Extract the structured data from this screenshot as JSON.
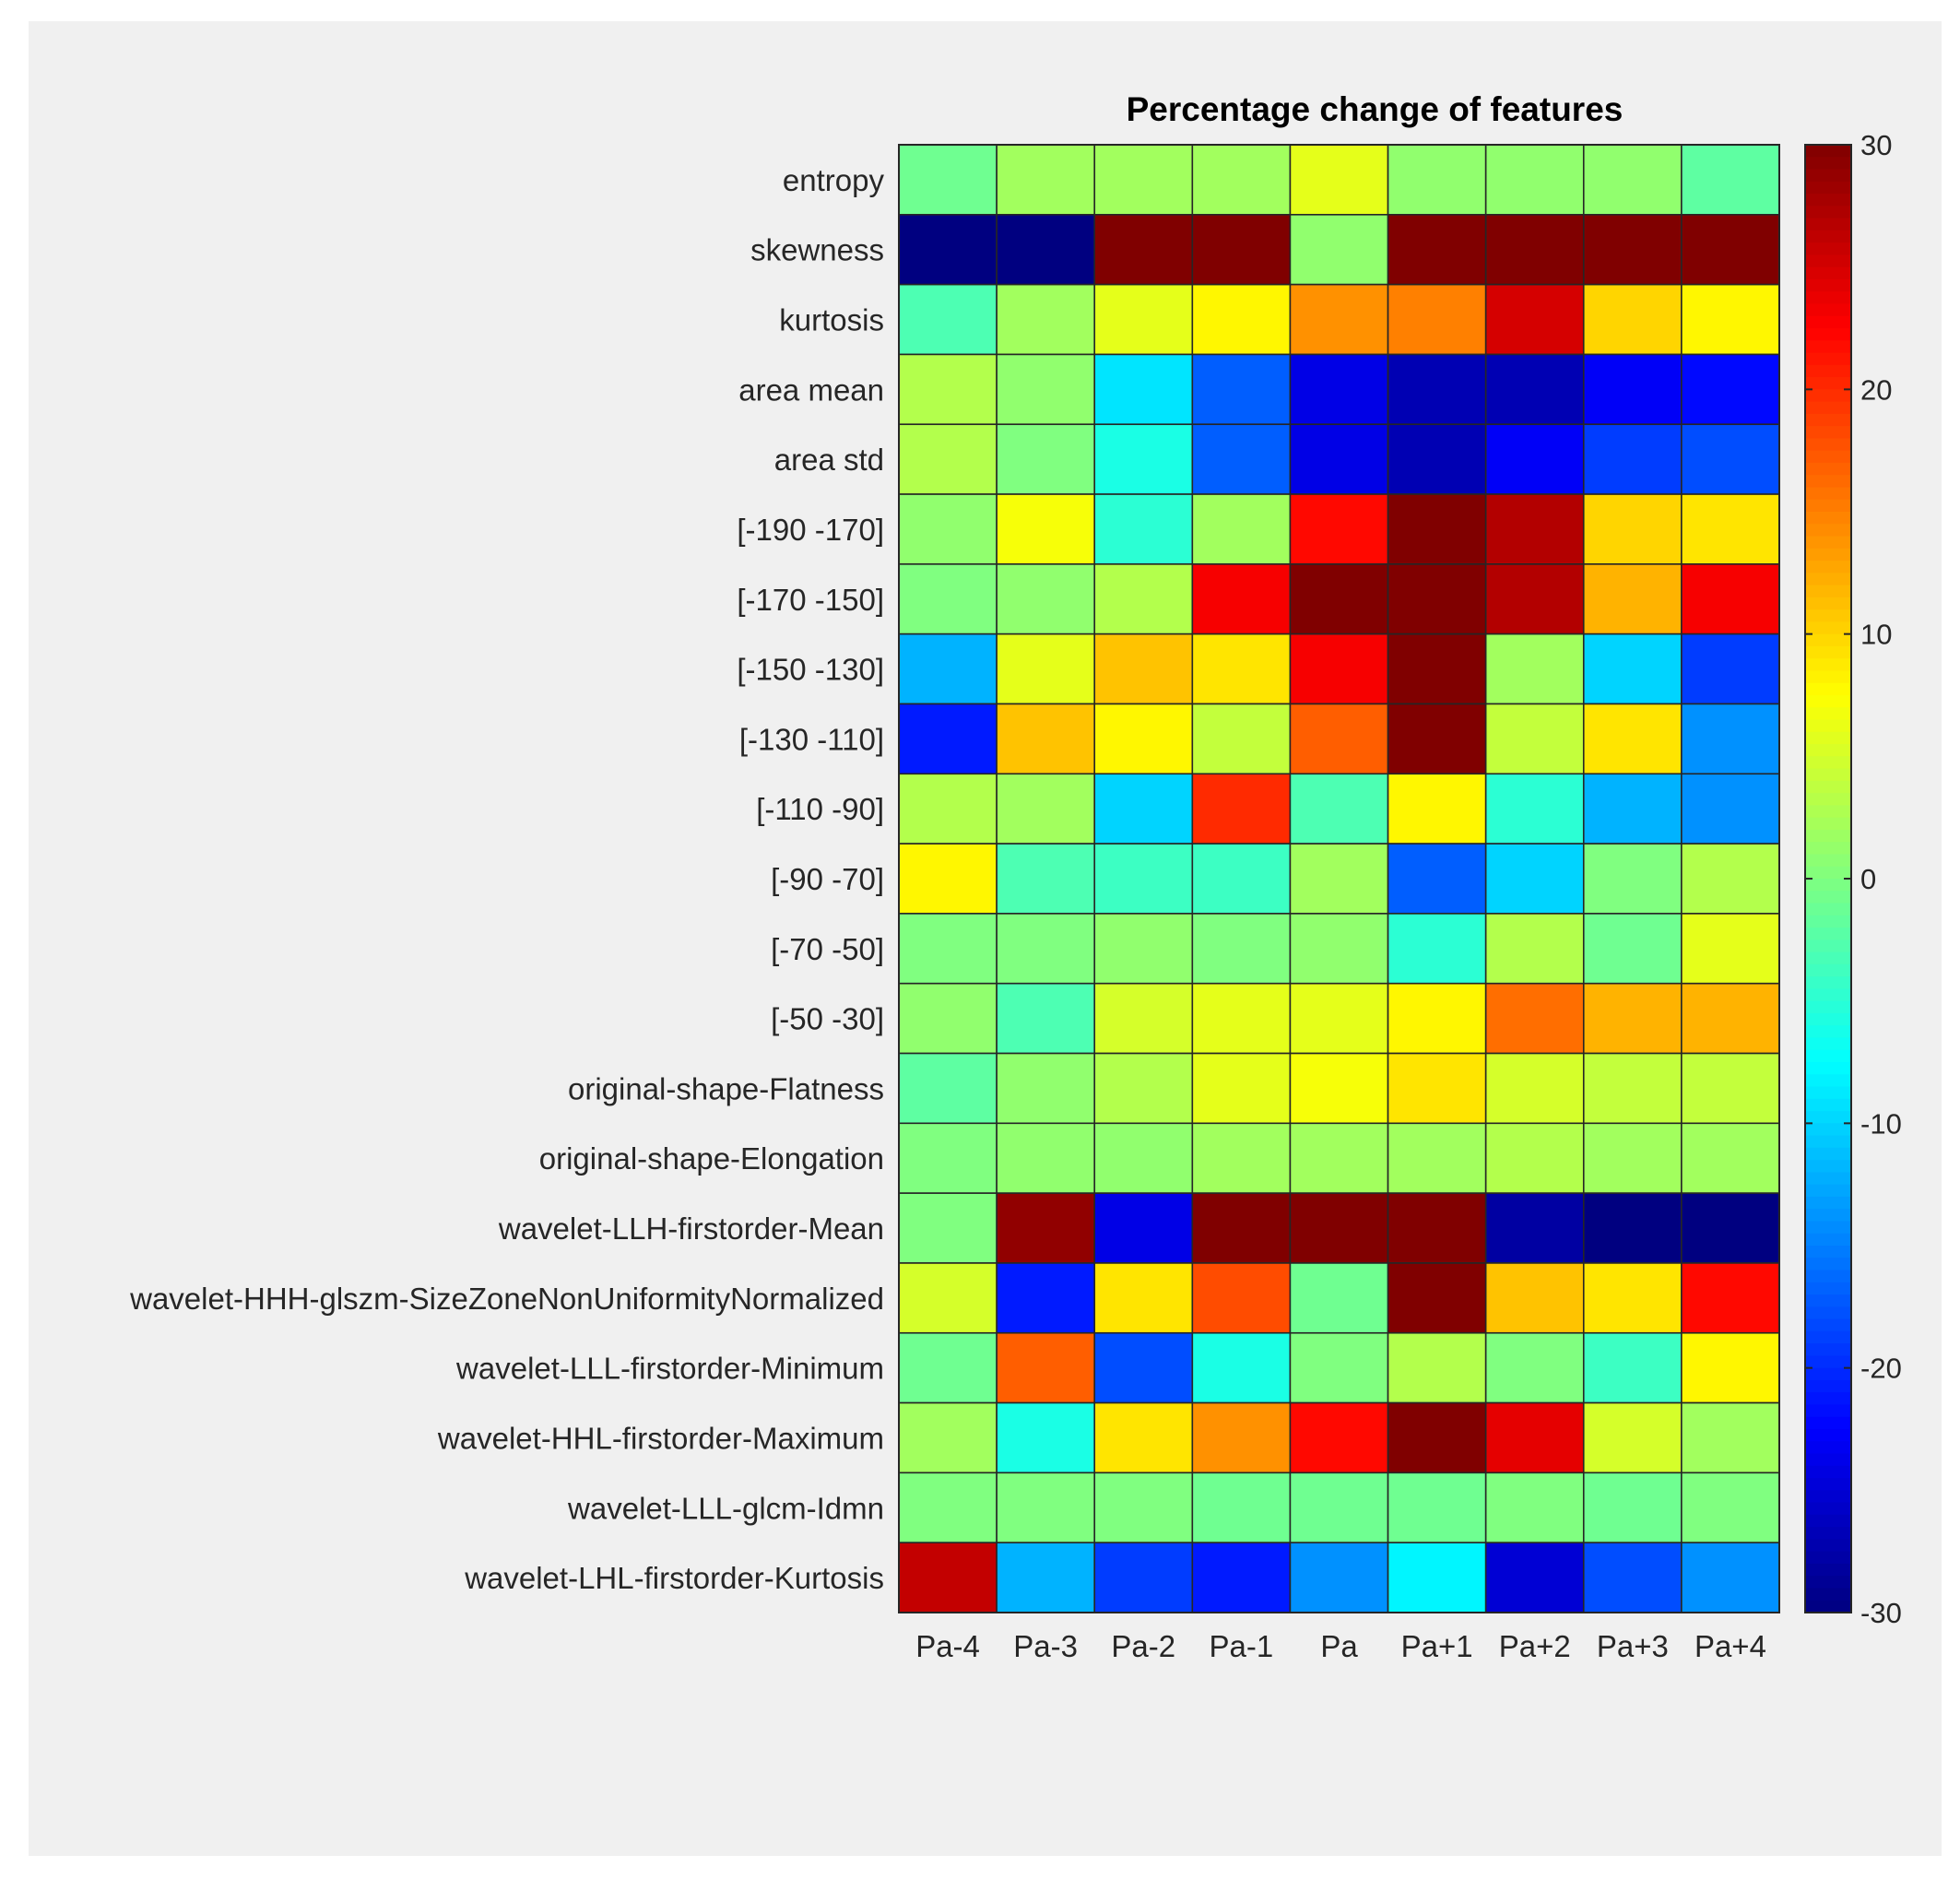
{
  "chart_data": {
    "type": "heatmap",
    "title": "Percentage change of features",
    "xlabel": "",
    "ylabel": "",
    "colormap": "jet",
    "clim": [
      -30,
      30
    ],
    "colorbar": {
      "ticks": [
        30,
        20,
        10,
        0,
        -10,
        -20,
        -30
      ],
      "tick_labels": [
        "30",
        "20",
        "10",
        "0",
        "-10",
        "-20",
        "-30"
      ],
      "placement": "right"
    },
    "columns": [
      "Pa-4",
      "Pa-3",
      "Pa-2",
      "Pa-1",
      "Pa",
      "Pa+1",
      "Pa+2",
      "Pa+3",
      "Pa+4"
    ],
    "rows": [
      "entropy",
      "skewness",
      "kurtosis",
      "area mean",
      "area std",
      "[-190 -170]",
      "[-170 -150]",
      "[-150 -130]",
      "[-130 -110]",
      "[-110 -90]",
      "[-90 -70]",
      "[-70 -50]",
      "[-50 -30]",
      "original-shape-Flatness",
      "original-shape-Elongation",
      "wavelet-LLH-firstorder-Mean",
      "wavelet-HHH-glszm-SizeZoneNonUniformityNormalized",
      "wavelet-LLL-firstorder-Minimum",
      "wavelet-HHL-firstorder-Maximum",
      "wavelet-LLL-glcm-Idmn",
      "wavelet-LHL-firstorder-Kurtosis"
    ],
    "values": [
      [
        -1,
        2,
        2,
        2,
        6,
        1,
        1,
        1,
        -2
      ],
      [
        -30,
        -30,
        30,
        30,
        1,
        30,
        30,
        30,
        30
      ],
      [
        -3,
        2,
        6,
        8,
        14,
        15,
        25,
        10,
        8
      ],
      [
        3,
        1,
        -9,
        -17,
        -24,
        -27,
        -27,
        -23,
        -22
      ],
      [
        3,
        0,
        -6,
        -17,
        -24,
        -27,
        -23,
        -19,
        -18
      ],
      [
        1,
        7,
        -5,
        2,
        22,
        30,
        27,
        10,
        9
      ],
      [
        0,
        1,
        3,
        23,
        30,
        30,
        27,
        12,
        23
      ],
      [
        -12,
        6,
        11,
        9,
        23,
        30,
        2,
        -10,
        -19
      ],
      [
        -21,
        11,
        8,
        4,
        17,
        30,
        4,
        9,
        -14
      ],
      [
        3,
        2,
        -10,
        20,
        -3,
        8,
        -5,
        -12,
        -14
      ],
      [
        8,
        -3,
        -4,
        -4,
        2,
        -17,
        -10,
        0,
        3
      ],
      [
        0,
        0,
        1,
        0,
        1,
        -5,
        3,
        -1,
        6
      ],
      [
        1,
        -3,
        5,
        6,
        6,
        8,
        16,
        12,
        12
      ],
      [
        -2,
        1,
        3,
        6,
        7,
        9,
        5,
        4,
        4
      ],
      [
        0,
        1,
        1,
        2,
        2,
        2,
        3,
        2,
        2
      ],
      [
        0,
        29,
        -24,
        30,
        30,
        30,
        -28,
        -30,
        -30
      ],
      [
        5,
        -21,
        9,
        18,
        -1,
        30,
        11,
        9,
        22
      ],
      [
        -1,
        17,
        -18,
        -6,
        0,
        3,
        0,
        -4,
        8
      ],
      [
        2,
        -6,
        9,
        14,
        22,
        30,
        24,
        5,
        2
      ],
      [
        0,
        0,
        0,
        -1,
        -1,
        -1,
        0,
        -1,
        0
      ],
      [
        26,
        -12,
        -19,
        -21,
        -14,
        -8,
        -25,
        -18,
        -14
      ]
    ]
  }
}
